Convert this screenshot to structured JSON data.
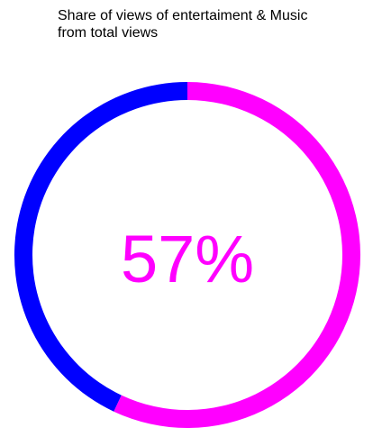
{
  "chart_data": {
    "type": "pie",
    "title": "Share of views of entertaiment & Music\nfrom total views",
    "center_label": "57%",
    "slices": [
      {
        "value": 57,
        "color": "#ff00ff"
      },
      {
        "value": 43,
        "color": "#0000ff"
      }
    ]
  }
}
